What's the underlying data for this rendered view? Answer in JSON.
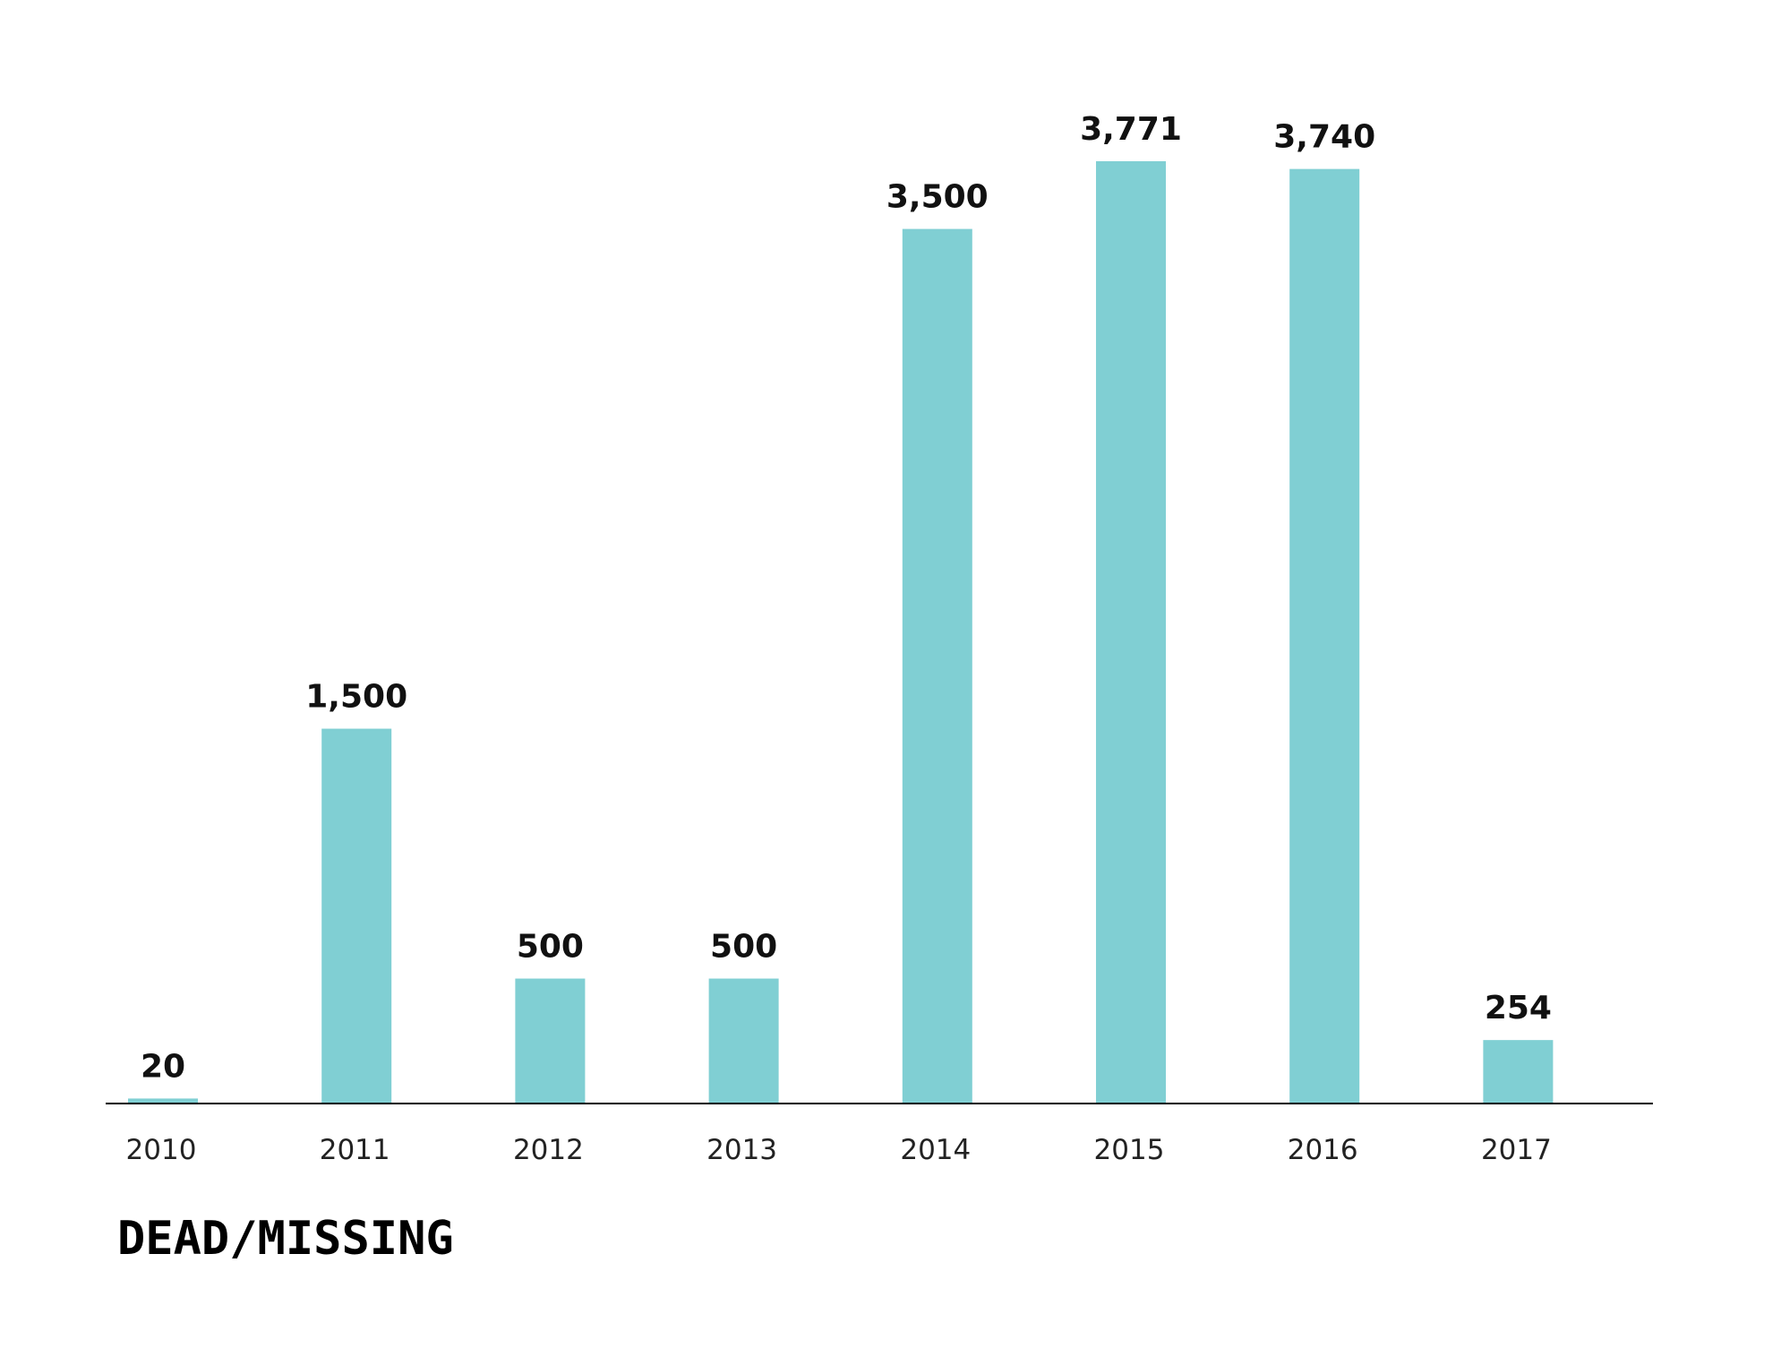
{
  "chart_data": {
    "type": "bar",
    "categories": [
      "2010",
      "2011",
      "2012",
      "2013",
      "2014",
      "2015",
      "2016",
      "2017"
    ],
    "values": [
      20,
      1500,
      500,
      500,
      3500,
      3771,
      3740,
      254
    ],
    "value_labels": [
      "20",
      "1,500",
      "500",
      "500",
      "3,500",
      "3,771",
      "3,740",
      "254"
    ],
    "title": "",
    "xlabel": "DEAD/MISSING",
    "ylabel": "",
    "ylim": [
      0,
      3771
    ],
    "grid": false,
    "legend": "none",
    "bar_color": "#80CFD3",
    "axis_color": "#000000"
  }
}
